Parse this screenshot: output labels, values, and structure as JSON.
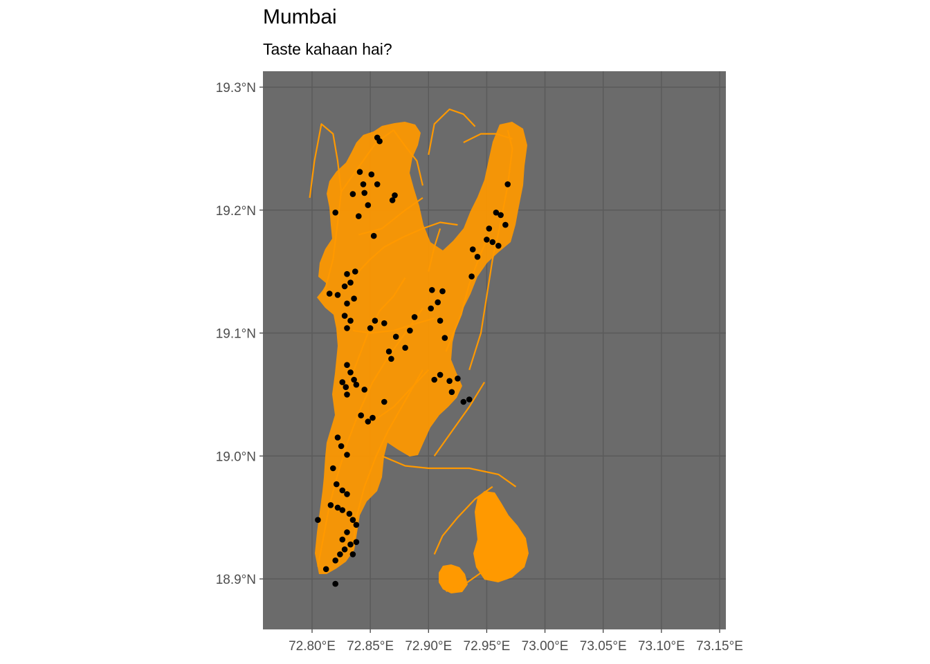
{
  "title": "Mumbai",
  "subtitle": "Taste kahaan hai?",
  "panel_background": "#6b6b6b",
  "road_color": "#ff9900",
  "point_color": "#000000",
  "grid": true,
  "lon_ticks": [
    {
      "value": 72.8,
      "label": "72.80°E"
    },
    {
      "value": 72.85,
      "label": "72.85°E"
    },
    {
      "value": 72.9,
      "label": "72.90°E"
    },
    {
      "value": 72.95,
      "label": "72.95°E"
    },
    {
      "value": 73.0,
      "label": "73.00°E"
    },
    {
      "value": 73.05,
      "label": "73.05°E"
    },
    {
      "value": 73.1,
      "label": "73.10°E"
    },
    {
      "value": 73.15,
      "label": "73.15°E"
    }
  ],
  "lat_ticks": [
    {
      "value": 19.3,
      "label": "19.3°N"
    },
    {
      "value": 19.2,
      "label": "19.2°N"
    },
    {
      "value": 19.1,
      "label": "19.1°N"
    },
    {
      "value": 19.0,
      "label": "19.0°N"
    },
    {
      "value": 18.9,
      "label": "18.9°N"
    }
  ],
  "lon_range": [
    72.779,
    72.979
  ],
  "lat_range": [
    18.86,
    19.31
  ],
  "roads": [
    [
      [
        72.81,
        19.131
      ],
      [
        72.818,
        19.16
      ],
      [
        72.822,
        19.19
      ],
      [
        72.825,
        19.215
      ],
      [
        72.822,
        19.24
      ],
      [
        72.818,
        19.262
      ],
      [
        72.808,
        19.27
      ],
      [
        72.802,
        19.24
      ],
      [
        72.798,
        19.21
      ]
    ],
    [
      [
        72.825,
        19.215
      ],
      [
        72.84,
        19.235
      ],
      [
        72.855,
        19.255
      ],
      [
        72.87,
        19.265
      ],
      [
        72.88,
        19.252
      ],
      [
        72.89,
        19.24
      ],
      [
        72.895,
        19.22
      ]
    ],
    [
      [
        72.83,
        19.138
      ],
      [
        72.84,
        19.15
      ],
      [
        72.85,
        19.16
      ],
      [
        72.862,
        19.17
      ],
      [
        72.878,
        19.178
      ],
      [
        72.895,
        19.185
      ],
      [
        72.91,
        19.19
      ],
      [
        72.925,
        19.188
      ]
    ],
    [
      [
        72.832,
        19.06
      ],
      [
        72.84,
        19.08
      ],
      [
        72.848,
        19.1
      ],
      [
        72.858,
        19.118
      ],
      [
        72.87,
        19.13
      ],
      [
        72.88,
        19.145
      ]
    ],
    [
      [
        72.805,
        18.91
      ],
      [
        72.81,
        18.935
      ],
      [
        72.815,
        18.96
      ],
      [
        72.822,
        18.985
      ],
      [
        72.83,
        19.01
      ],
      [
        72.84,
        19.035
      ],
      [
        72.852,
        19.06
      ],
      [
        72.865,
        19.08
      ],
      [
        72.88,
        19.1
      ],
      [
        72.895,
        19.12
      ]
    ],
    [
      [
        72.835,
        18.925
      ],
      [
        72.838,
        18.95
      ],
      [
        72.845,
        18.975
      ],
      [
        72.855,
        19.0
      ],
      [
        72.865,
        19.02
      ],
      [
        72.88,
        19.045
      ],
      [
        72.895,
        19.07
      ]
    ],
    [
      [
        72.86,
        19.0
      ],
      [
        72.88,
        18.992
      ],
      [
        72.9,
        18.99
      ],
      [
        72.935,
        18.99
      ],
      [
        72.96,
        18.985
      ],
      [
        72.975,
        18.975
      ]
    ],
    [
      [
        72.905,
        19.0
      ],
      [
        72.92,
        19.02
      ],
      [
        72.935,
        19.04
      ],
      [
        72.948,
        19.06
      ]
    ],
    [
      [
        72.935,
        19.07
      ],
      [
        72.945,
        19.1
      ],
      [
        72.95,
        19.13
      ],
      [
        72.955,
        19.16
      ],
      [
        72.962,
        19.19
      ],
      [
        72.968,
        19.22
      ],
      [
        72.972,
        19.25
      ],
      [
        72.968,
        19.265
      ]
    ],
    [
      [
        72.915,
        19.085
      ],
      [
        72.928,
        19.115
      ],
      [
        72.935,
        19.14
      ],
      [
        72.945,
        19.165
      ],
      [
        72.952,
        19.18
      ]
    ],
    [
      [
        72.93,
        19.255
      ],
      [
        72.945,
        19.262
      ],
      [
        72.958,
        19.262
      ],
      [
        72.972,
        19.258
      ]
    ],
    [
      [
        72.9,
        19.245
      ],
      [
        72.905,
        19.27
      ],
      [
        72.918,
        19.282
      ],
      [
        72.93,
        19.278
      ],
      [
        72.94,
        19.268
      ]
    ],
    [
      [
        72.905,
        18.92
      ],
      [
        72.912,
        18.935
      ],
      [
        72.925,
        18.95
      ],
      [
        72.94,
        18.965
      ],
      [
        72.955,
        18.975
      ]
    ],
    [
      [
        72.915,
        18.89
      ],
      [
        72.93,
        18.895
      ],
      [
        72.945,
        18.905
      ],
      [
        72.96,
        18.91
      ]
    ],
    [
      [
        72.835,
        19.102
      ],
      [
        72.85,
        19.1
      ],
      [
        72.87,
        19.102
      ],
      [
        72.89,
        19.108
      ],
      [
        72.905,
        19.112
      ]
    ],
    [
      [
        72.84,
        19.18
      ],
      [
        72.86,
        19.185
      ],
      [
        72.88,
        19.2
      ],
      [
        72.895,
        19.21
      ]
    ],
    [
      [
        72.9,
        19.15
      ],
      [
        72.905,
        19.17
      ],
      [
        72.91,
        19.185
      ]
    ],
    [
      [
        72.855,
        19.03
      ],
      [
        72.87,
        19.04
      ],
      [
        72.885,
        19.055
      ],
      [
        72.9,
        19.07
      ]
    ]
  ],
  "restaurants": [
    [
      72.856,
      19.259
    ],
    [
      72.858,
      19.256
    ],
    [
      72.841,
      19.231
    ],
    [
      72.851,
      19.229
    ],
    [
      72.844,
      19.221
    ],
    [
      72.856,
      19.221
    ],
    [
      72.835,
      19.213
    ],
    [
      72.845,
      19.214
    ],
    [
      72.869,
      19.208
    ],
    [
      72.871,
      19.212
    ],
    [
      72.84,
      19.195
    ],
    [
      72.848,
      19.204
    ],
    [
      72.82,
      19.198
    ],
    [
      72.853,
      19.179
    ],
    [
      72.837,
      19.15
    ],
    [
      72.83,
      19.148
    ],
    [
      72.833,
      19.141
    ],
    [
      72.828,
      19.138
    ],
    [
      72.822,
      19.131
    ],
    [
      72.815,
      19.132
    ],
    [
      72.836,
      19.128
    ],
    [
      72.83,
      19.124
    ],
    [
      72.828,
      19.114
    ],
    [
      72.833,
      19.11
    ],
    [
      72.83,
      19.104
    ],
    [
      72.85,
      19.104
    ],
    [
      72.854,
      19.11
    ],
    [
      72.862,
      19.108
    ],
    [
      72.872,
      19.097
    ],
    [
      72.888,
      19.113
    ],
    [
      72.884,
      19.102
    ],
    [
      72.88,
      19.088
    ],
    [
      72.866,
      19.085
    ],
    [
      72.868,
      19.079
    ],
    [
      72.83,
      19.074
    ],
    [
      72.833,
      19.068
    ],
    [
      72.836,
      19.062
    ],
    [
      72.826,
      19.06
    ],
    [
      72.829,
      19.056
    ],
    [
      72.838,
      19.058
    ],
    [
      72.83,
      19.05
    ],
    [
      72.845,
      19.054
    ],
    [
      72.862,
      19.044
    ],
    [
      72.842,
      19.033
    ],
    [
      72.848,
      19.028
    ],
    [
      72.852,
      19.031
    ],
    [
      72.822,
      19.015
    ],
    [
      72.825,
      19.008
    ],
    [
      72.83,
      19.001
    ],
    [
      72.818,
      18.99
    ],
    [
      72.821,
      18.977
    ],
    [
      72.826,
      18.972
    ],
    [
      72.83,
      18.969
    ],
    [
      72.816,
      18.96
    ],
    [
      72.822,
      18.958
    ],
    [
      72.826,
      18.956
    ],
    [
      72.832,
      18.953
    ],
    [
      72.835,
      18.948
    ],
    [
      72.838,
      18.944
    ],
    [
      72.83,
      18.938
    ],
    [
      72.826,
      18.932
    ],
    [
      72.833,
      18.928
    ],
    [
      72.828,
      18.924
    ],
    [
      72.824,
      18.92
    ],
    [
      72.82,
      18.915
    ],
    [
      72.812,
      18.908
    ],
    [
      72.805,
      18.948
    ],
    [
      72.82,
      18.896
    ],
    [
      72.835,
      18.92
    ],
    [
      72.838,
      18.93
    ],
    [
      72.903,
      19.135
    ],
    [
      72.912,
      19.134
    ],
    [
      72.908,
      19.125
    ],
    [
      72.902,
      19.12
    ],
    [
      72.91,
      19.11
    ],
    [
      72.914,
      19.096
    ],
    [
      72.905,
      19.062
    ],
    [
      72.91,
      19.066
    ],
    [
      72.918,
      19.061
    ],
    [
      72.925,
      19.063
    ],
    [
      72.92,
      19.052
    ],
    [
      72.93,
      19.044
    ],
    [
      72.935,
      19.046
    ],
    [
      72.937,
      19.146
    ],
    [
      72.938,
      19.168
    ],
    [
      72.942,
      19.162
    ],
    [
      72.95,
      19.176
    ],
    [
      72.955,
      19.174
    ],
    [
      72.96,
      19.171
    ],
    [
      72.952,
      19.185
    ],
    [
      72.962,
      19.196
    ],
    [
      72.966,
      19.188
    ],
    [
      72.968,
      19.221
    ],
    [
      72.958,
      19.198
    ]
  ]
}
